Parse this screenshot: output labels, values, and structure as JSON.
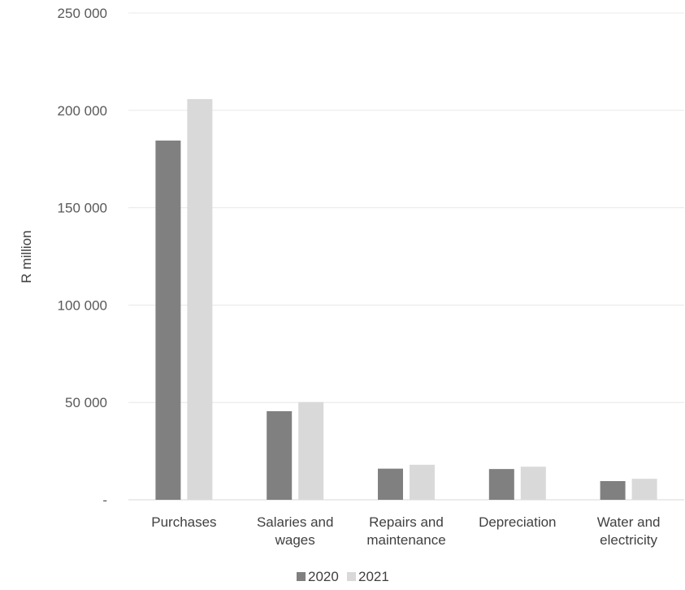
{
  "chart_data": {
    "type": "bar",
    "title": "",
    "xlabel": "",
    "ylabel": "R million",
    "ylim": [
      0,
      250000
    ],
    "yticks": [
      {
        "value": 0,
        "label": "-"
      },
      {
        "value": 50000,
        "label": "50 000"
      },
      {
        "value": 100000,
        "label": "100 000"
      },
      {
        "value": 150000,
        "label": "150 000"
      },
      {
        "value": 200000,
        "label": "200 000"
      },
      {
        "value": 250000,
        "label": "250 000"
      }
    ],
    "categories": [
      [
        "Purchases"
      ],
      [
        "Salaries and",
        "wages"
      ],
      [
        "Repairs and",
        "maintenance"
      ],
      [
        "Depreciation"
      ],
      [
        "Water and",
        "electricity"
      ]
    ],
    "series": [
      {
        "name": "2020",
        "color": "#808080",
        "values": [
          184500,
          45500,
          16000,
          15800,
          9600
        ]
      },
      {
        "name": "2021",
        "color": "#d9d9d9",
        "values": [
          205800,
          50200,
          18000,
          17000,
          10800
        ]
      }
    ],
    "grid": true,
    "legend": "bottom-center"
  }
}
